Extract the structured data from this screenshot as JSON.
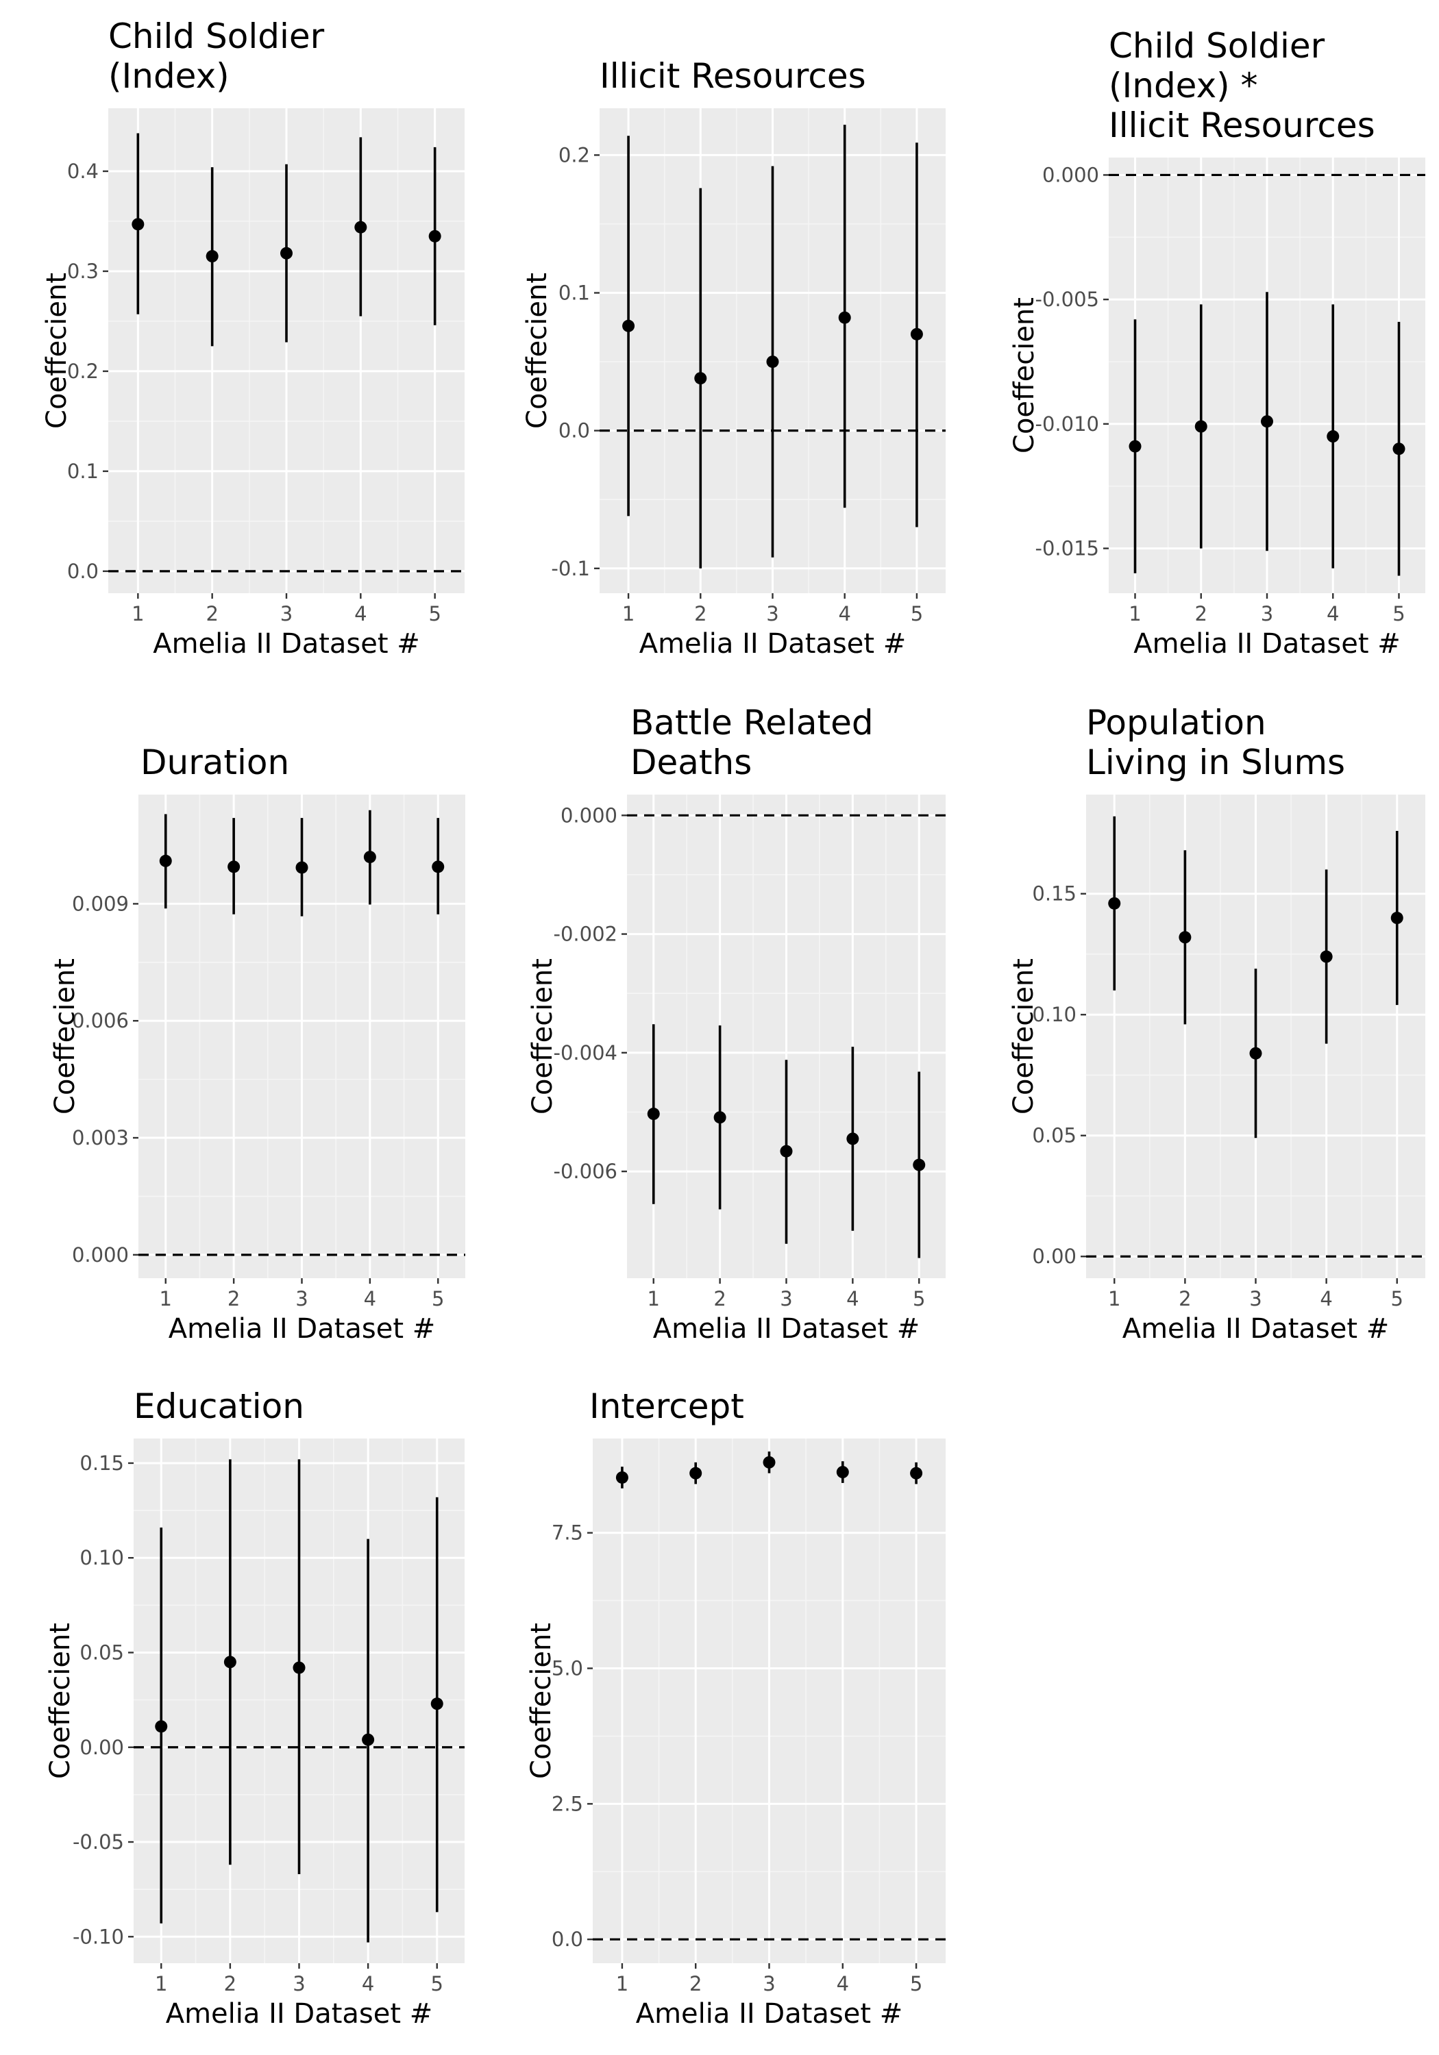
{
  "chart_data": [
    {
      "type": "errorbar",
      "title_lines": [
        "Child Soldier",
        "(Index)"
      ],
      "xlabel": "Amelia II Dataset #",
      "ylabel": "Coeffecient",
      "x": [
        1,
        2,
        3,
        4,
        5
      ],
      "estimate": [
        0.347,
        0.315,
        0.318,
        0.344,
        0.335
      ],
      "lower": [
        0.257,
        0.225,
        0.229,
        0.255,
        0.246
      ],
      "upper": [
        0.438,
        0.404,
        0.407,
        0.434,
        0.424
      ],
      "ylim": [
        -0.022,
        0.463
      ],
      "yticks": [
        0.0,
        0.1,
        0.2,
        0.3,
        0.4
      ],
      "ytick_labels": [
        "0.0",
        "0.1",
        "0.2",
        "0.3",
        "0.4"
      ],
      "reference_line": 0
    },
    {
      "type": "errorbar",
      "title_lines": [
        "Illicit Resources"
      ],
      "xlabel": "Amelia II Dataset #",
      "ylabel": "Coeffecient",
      "x": [
        1,
        2,
        3,
        4,
        5
      ],
      "estimate": [
        0.076,
        0.038,
        0.05,
        0.082,
        0.07
      ],
      "lower": [
        -0.062,
        -0.1,
        -0.092,
        -0.056,
        -0.07
      ],
      "upper": [
        0.214,
        0.176,
        0.192,
        0.222,
        0.209
      ],
      "ylim": [
        -0.118,
        0.234
      ],
      "yticks": [
        -0.1,
        0.0,
        0.1,
        0.2
      ],
      "ytick_labels": [
        "-0.1",
        "0.0",
        "0.1",
        "0.2"
      ],
      "reference_line": 0
    },
    {
      "type": "errorbar",
      "title_lines": [
        "Child Soldier",
        "(Index) *",
        "Illicit Resources"
      ],
      "xlabel": "Amelia II Dataset #",
      "ylabel": "Coeffecient",
      "x": [
        1,
        2,
        3,
        4,
        5
      ],
      "estimate": [
        -0.0109,
        -0.0101,
        -0.0099,
        -0.0105,
        -0.011
      ],
      "lower": [
        -0.016,
        -0.015,
        -0.0151,
        -0.0158,
        -0.0161
      ],
      "upper": [
        -0.0058,
        -0.0052,
        -0.0047,
        -0.0052,
        -0.0059
      ],
      "ylim": [
        -0.0168,
        0.0007
      ],
      "yticks": [
        -0.015,
        -0.01,
        -0.005,
        0.0
      ],
      "ytick_labels": [
        "-0.015",
        "-0.010",
        "-0.005",
        "0.000"
      ],
      "reference_line": 0
    },
    {
      "type": "errorbar",
      "title_lines": [
        "Duration"
      ],
      "xlabel": "Amelia II Dataset #",
      "ylabel": "Coeffecient",
      "x": [
        1,
        2,
        3,
        4,
        5
      ],
      "estimate": [
        0.0101,
        0.00995,
        0.00993,
        0.0102,
        0.00995
      ],
      "lower": [
        0.00888,
        0.00873,
        0.00868,
        0.00898,
        0.00873
      ],
      "upper": [
        0.0113,
        0.0112,
        0.0112,
        0.0114,
        0.0112
      ],
      "ylim": [
        -0.0006,
        0.0118
      ],
      "yticks": [
        0.0,
        0.003,
        0.006,
        0.009
      ],
      "ytick_labels": [
        "0.000",
        "0.003",
        "0.006",
        "0.009"
      ],
      "reference_line": 0
    },
    {
      "type": "errorbar",
      "title_lines": [
        "Battle Related",
        "Deaths"
      ],
      "xlabel": "Amelia II Dataset #",
      "ylabel": "Coeffecient",
      "x": [
        1,
        2,
        3,
        4,
        5
      ],
      "estimate": [
        -0.00503,
        -0.00509,
        -0.00566,
        -0.00545,
        -0.00589
      ],
      "lower": [
        -0.00655,
        -0.00664,
        -0.00722,
        -0.007,
        -0.00746
      ],
      "upper": [
        -0.00352,
        -0.00354,
        -0.00412,
        -0.0039,
        -0.00432
      ],
      "ylim": [
        -0.0078,
        0.00035
      ],
      "yticks": [
        -0.006,
        -0.004,
        -0.002,
        0.0
      ],
      "ytick_labels": [
        "-0.006",
        "-0.004",
        "-0.002",
        "0.000"
      ],
      "reference_line": 0
    },
    {
      "type": "errorbar",
      "title_lines": [
        "Population",
        "Living in Slums"
      ],
      "xlabel": "Amelia II Dataset #",
      "ylabel": "Coeffecient",
      "x": [
        1,
        2,
        3,
        4,
        5
      ],
      "estimate": [
        0.146,
        0.132,
        0.084,
        0.124,
        0.14
      ],
      "lower": [
        0.11,
        0.096,
        0.049,
        0.088,
        0.104
      ],
      "upper": [
        0.182,
        0.168,
        0.119,
        0.16,
        0.176
      ],
      "ylim": [
        -0.009,
        0.191
      ],
      "yticks": [
        0.0,
        0.05,
        0.1,
        0.15
      ],
      "ytick_labels": [
        "0.00",
        "0.05",
        "0.10",
        "0.15"
      ],
      "reference_line": 0
    },
    {
      "type": "errorbar",
      "title_lines": [
        "Education"
      ],
      "xlabel": "Amelia II Dataset #",
      "ylabel": "Coeffecient",
      "x": [
        1,
        2,
        3,
        4,
        5
      ],
      "estimate": [
        0.011,
        0.045,
        0.042,
        0.004,
        0.023
      ],
      "lower": [
        -0.093,
        -0.062,
        -0.067,
        -0.103,
        -0.087
      ],
      "upper": [
        0.116,
        0.152,
        0.152,
        0.11,
        0.132
      ],
      "ylim": [
        -0.114,
        0.163
      ],
      "yticks": [
        -0.1,
        -0.05,
        0.0,
        0.05,
        0.1,
        0.15
      ],
      "ytick_labels": [
        "-0.10",
        "-0.05",
        "0.00",
        "0.05",
        "0.10",
        "0.15"
      ],
      "reference_line": 0
    },
    {
      "type": "errorbar",
      "title_lines": [
        "Intercept"
      ],
      "xlabel": "Amelia II Dataset #",
      "ylabel": "Coeffecient",
      "x": [
        1,
        2,
        3,
        4,
        5
      ],
      "estimate": [
        8.52,
        8.6,
        8.8,
        8.62,
        8.6
      ],
      "lower": [
        8.32,
        8.4,
        8.6,
        8.42,
        8.4
      ],
      "upper": [
        8.72,
        8.8,
        9.0,
        8.82,
        8.8
      ],
      "ylim": [
        -0.44,
        9.24
      ],
      "yticks": [
        0.0,
        2.5,
        5.0,
        7.5
      ],
      "ytick_labels": [
        "0.0",
        "2.5",
        "5.0",
        "7.5"
      ],
      "reference_line": 0
    }
  ],
  "colors": {
    "panel_background": "#ebebeb",
    "grid_major": "#ffffff",
    "grid_minor": "#f5f5f5",
    "mark": "#000000",
    "axis_text": "#4d4d4d",
    "text": "#000000"
  }
}
